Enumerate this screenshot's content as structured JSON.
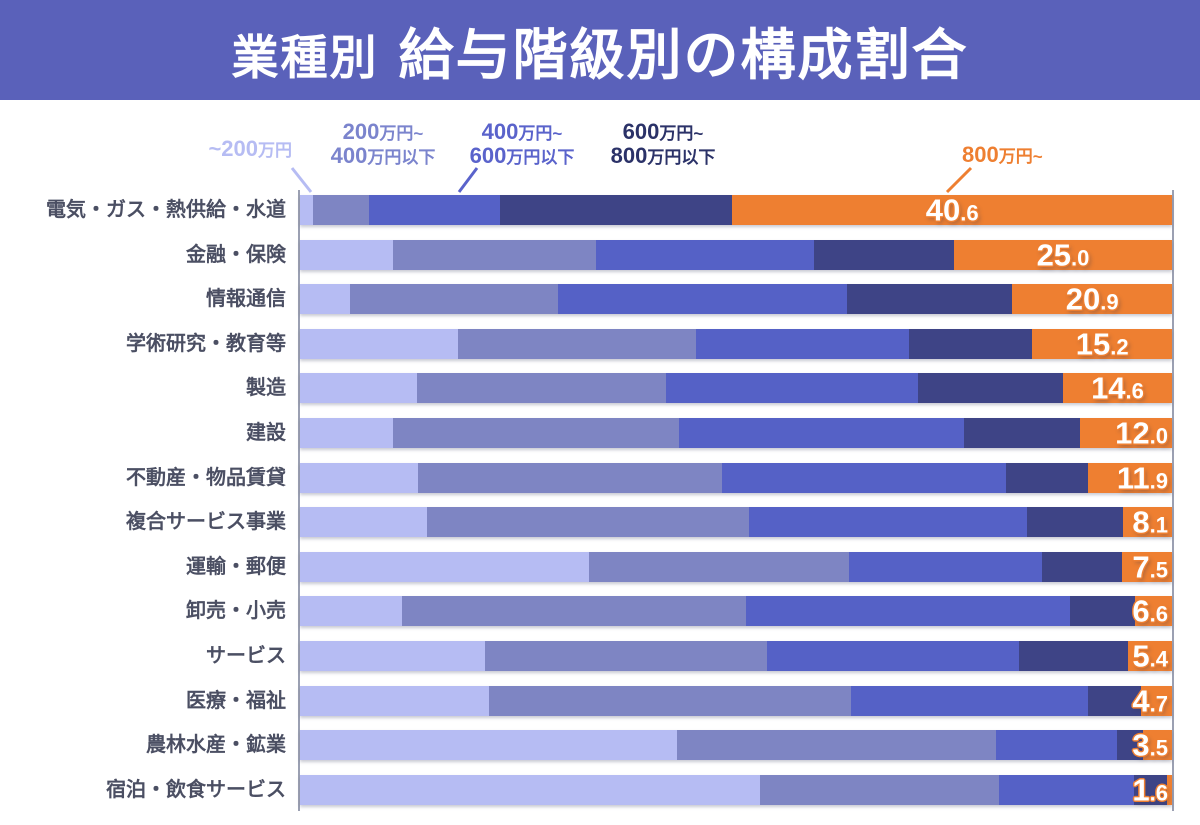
{
  "header": {
    "title_prefix": "業種別",
    "title_main": "給与階級別の構成割合"
  },
  "legend": {
    "items": [
      {
        "id": "under-200",
        "lines": [
          "~200万円"
        ],
        "color": "#b6bcf3"
      },
      {
        "id": "200-400",
        "lines": [
          "200万円~",
          "400万円以下"
        ],
        "color": "#7b84cd"
      },
      {
        "id": "400-600",
        "lines": [
          "400万円~",
          "600万円以下"
        ],
        "color": "#5a63cb"
      },
      {
        "id": "600-800",
        "lines": [
          "600万円~",
          "800万円以下"
        ],
        "color": "#2b3268"
      },
      {
        "id": "over-800",
        "lines": [
          "800万円~"
        ],
        "color": "#ee7f31"
      }
    ]
  },
  "chart_data": {
    "type": "bar",
    "subtype": "horizontal-stacked-100pct",
    "unit": "%",
    "title": "業種別 給与階級別の構成割合",
    "legend_position": "top",
    "series_names": [
      "~200万円",
      "200万円~400万円以下",
      "400万円~600万円以下",
      "600万円~800万円以下",
      "800万円~"
    ],
    "colors": [
      "#b6bcf3",
      "#7e85c3",
      "#5561c6",
      "#3e4486",
      "#ee7f31"
    ],
    "value_label_series": "800万円~",
    "rows": [
      {
        "label": "電気・ガス・熱供給・水道",
        "segments": [
          1.5,
          6.4,
          15.0,
          26.7
        ],
        "value_800": "40.6"
      },
      {
        "label": "金融・保険",
        "segments": [
          10.7,
          23.2,
          25.0,
          16.1
        ],
        "value_800": "25.0"
      },
      {
        "label": "情報通信",
        "segments": [
          5.7,
          23.9,
          33.1,
          19.0
        ],
        "value_800": "20.9"
      },
      {
        "label": "学術研究・教育等",
        "segments": [
          18.1,
          27.3,
          24.4,
          14.2
        ],
        "value_800": "15.2"
      },
      {
        "label": "製造",
        "segments": [
          13.4,
          28.6,
          28.9,
          16.6
        ],
        "value_800": "14.6"
      },
      {
        "label": "建設",
        "segments": [
          10.7,
          32.8,
          32.7,
          13.2
        ],
        "value_800": "12.0"
      },
      {
        "label": "不動産・物品賃貸",
        "segments": [
          13.5,
          34.9,
          32.6,
          9.4
        ],
        "value_800": "11.9"
      },
      {
        "label": "複合サービス事業",
        "segments": [
          14.6,
          36.9,
          31.9,
          11.0
        ],
        "value_800": "8.1"
      },
      {
        "label": "運輸・郵便",
        "segments": [
          33.1,
          29.9,
          22.1,
          9.2
        ],
        "value_800": "7.5"
      },
      {
        "label": "卸売・小売",
        "segments": [
          11.7,
          39.4,
          37.2,
          7.5
        ],
        "value_800": "6.6"
      },
      {
        "label": "サービス",
        "segments": [
          21.2,
          32.3,
          28.9,
          12.5
        ],
        "value_800": "5.4"
      },
      {
        "label": "医療・福祉",
        "segments": [
          21.7,
          41.5,
          27.2,
          6.1
        ],
        "value_800": "4.7"
      },
      {
        "label": "農林水産・鉱業",
        "segments": [
          43.2,
          36.6,
          13.9,
          3.0
        ],
        "value_800": "3.5"
      },
      {
        "label": "宿泊・飲食サービス",
        "segments": [
          52.8,
          27.4,
          15.4,
          3.8
        ],
        "value_800": "1.6"
      }
    ]
  }
}
